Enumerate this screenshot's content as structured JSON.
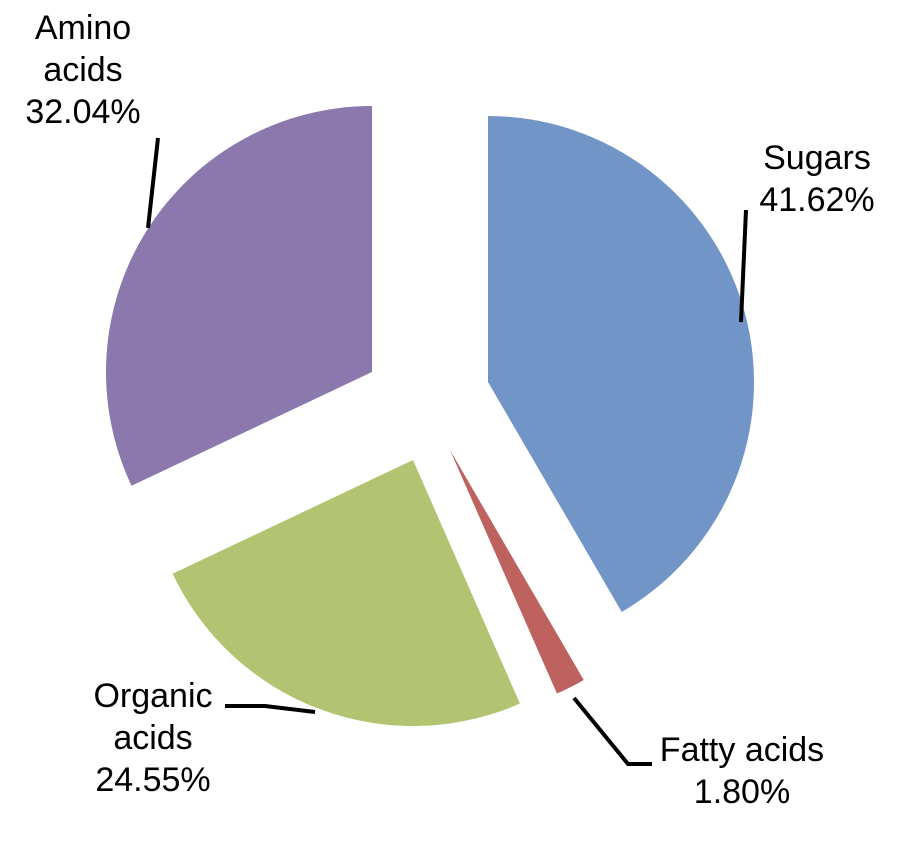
{
  "chart_data": {
    "type": "pie",
    "title": "",
    "exploded": true,
    "slices": [
      {
        "label_lines": [
          "Sugars"
        ],
        "value_text": "41.62%",
        "value": 41.62,
        "color": "#7295C7"
      },
      {
        "label_lines": [
          "Fatty acids"
        ],
        "value_text": "1.80%",
        "value": 1.8,
        "color": "#BE625F"
      },
      {
        "label_lines": [
          "Organic",
          "acids"
        ],
        "value_text": "24.55%",
        "value": 24.55,
        "color": "#B2C472"
      },
      {
        "label_lines": [
          "Amino",
          "acids"
        ],
        "value_text": "32.04%",
        "value": 32.04,
        "color": "#8B79AD"
      }
    ]
  }
}
